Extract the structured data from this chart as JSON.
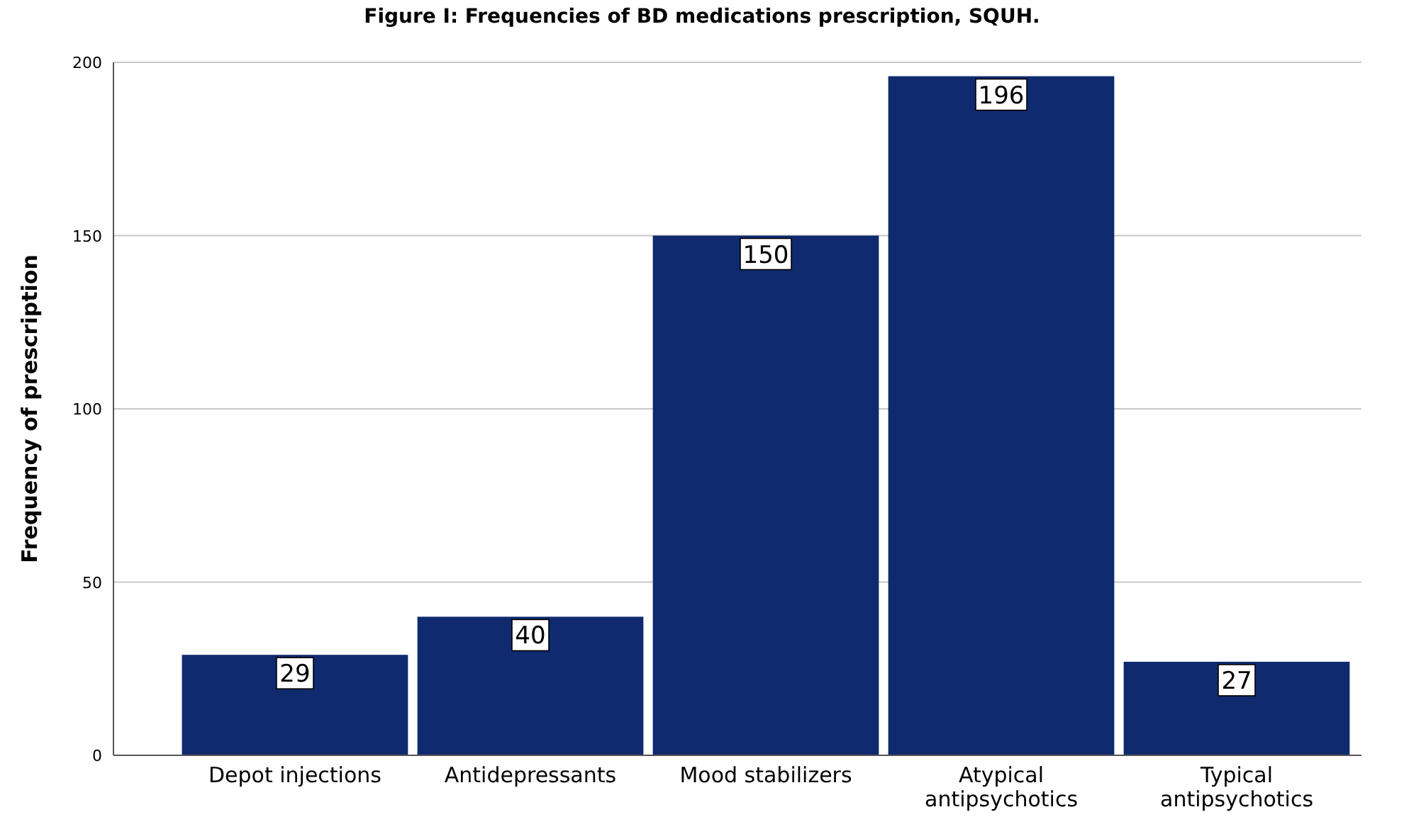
{
  "chart_data": {
    "type": "bar",
    "title": "Figure I: Frequencies of BD medications prescription, SQUH.",
    "ylabel": "Frequency of prescription",
    "categories": [
      "Depot injections",
      "Antidepressants",
      "Mood stabilizers",
      "Atypical antipsychotics",
      "Typical antipsychotics"
    ],
    "values": [
      29,
      40,
      150,
      196,
      27
    ],
    "color": "#0f2a6e",
    "ylim": [
      0,
      200
    ],
    "yticks": [
      0,
      50,
      100,
      150,
      200
    ],
    "grid": "y",
    "data_labels": true
  }
}
